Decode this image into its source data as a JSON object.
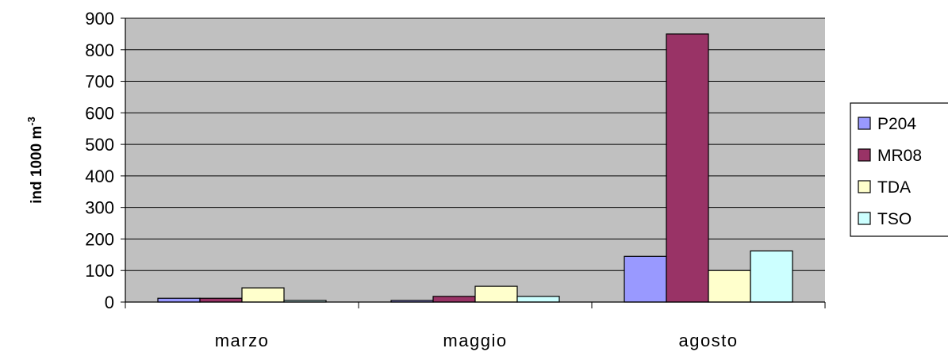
{
  "chart_data": {
    "type": "bar",
    "title": "",
    "xlabel": "",
    "ylabel": "ind 1000 m",
    "ylabel_superscript": "-3",
    "categories": [
      "marzo",
      "maggio",
      "agosto"
    ],
    "ylim": [
      0,
      900
    ],
    "yticks": [
      "0",
      "100",
      "200",
      "300",
      "400",
      "500",
      "600",
      "700",
      "800",
      "900"
    ],
    "grid": true,
    "legend_position": "right",
    "plot_background": "#c0c0c0",
    "series": [
      {
        "name": "P204",
        "color": "#9999ff",
        "values": [
          12,
          5,
          145
        ]
      },
      {
        "name": "MR08",
        "color": "#993366",
        "values": [
          12,
          18,
          850
        ]
      },
      {
        "name": "TDA",
        "color": "#ffffcc",
        "values": [
          45,
          50,
          100
        ]
      },
      {
        "name": "TSO",
        "color": "#ccffff",
        "values": [
          5,
          18,
          162
        ]
      }
    ]
  }
}
